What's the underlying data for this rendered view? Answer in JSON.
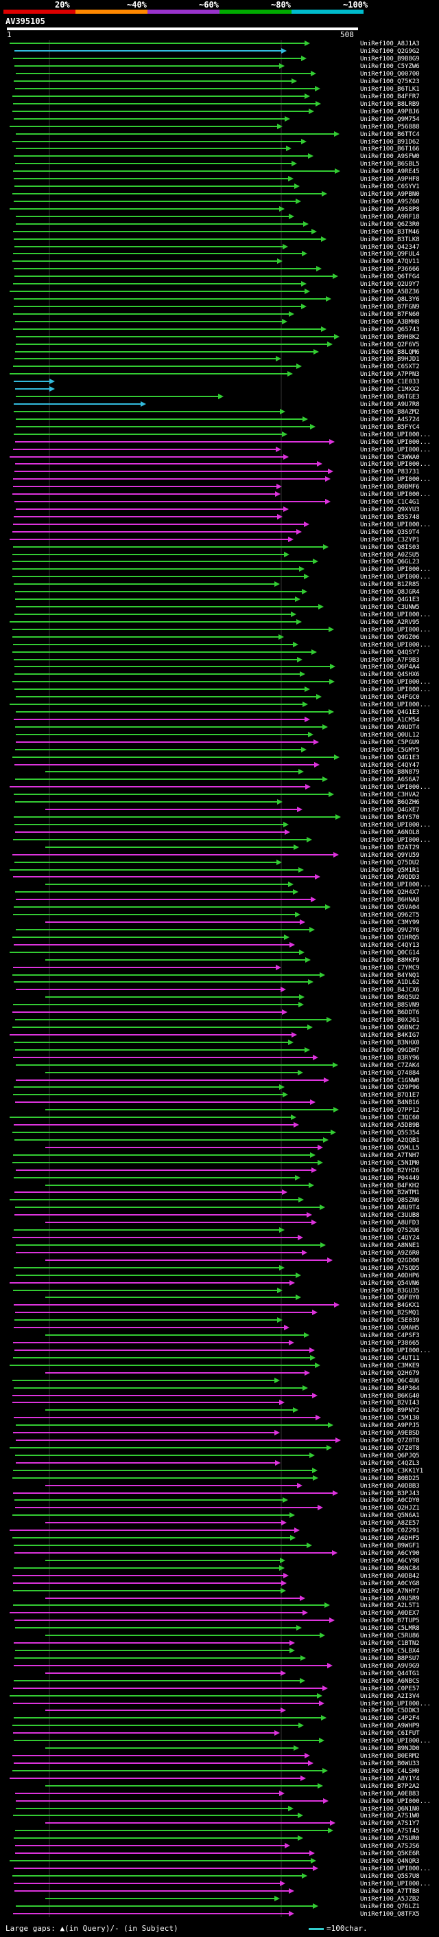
{
  "header": {
    "scale_labels": [
      "20%",
      "~40%",
      "~60%",
      "~80%",
      "~100%"
    ],
    "accession": "AV395105",
    "query_start": "1",
    "query_end": "508"
  },
  "colors": {
    "scale": [
      "#dd0000",
      "#ff8800",
      "#9933cc",
      "#00aa00",
      "#00bbcc"
    ],
    "green": "#33cc33",
    "magenta": "#dd33dd",
    "cyan": "#33bbdd"
  },
  "hits": [
    "UniRef100_A8J1A3",
    "UniRef100_Q2G9G2",
    "UniRef100_B9B8G9",
    "UniRef100_C5YZW6",
    "UniRef100_Q00700",
    "UniRef100_Q75K23",
    "UniRef100_B6TLK1",
    "UniRef100_B4FFR7",
    "UniRef100_B8LRB9",
    "UniRef100_A9PBJ6",
    "UniRef100_Q9M754",
    "UniRef100_P56888",
    "UniRef100_B6TTC4",
    "UniRef100_B91D62",
    "UniRef100_B6T166",
    "UniRef100_A9SFW0",
    "UniRef100_B6SBL5",
    "UniRef100_A9RE45",
    "UniRef100_A9PHF8",
    "UniRef100_C6SYV1",
    "UniRef100_A9PBN0",
    "UniRef100_A9SZ60",
    "UniRef100_A9S8P8",
    "UniRef100_A9RF18",
    "UniRef100_Q6Z3R0",
    "UniRef100_B3TM46",
    "UniRef100_B3TLK8",
    "UniRef100_Q42347",
    "UniRef100_Q9FUL4",
    "UniRef100_A7QV11",
    "UniRef100_P36666",
    "UniRef100_Q6TFG4",
    "UniRef100_Q2U9Y7",
    "UniRef100_A5BZ36",
    "UniRef100_Q8L3Y6",
    "UniRef100_B7FGN9",
    "UniRef100_B7FN60",
    "UniRef100_A3BMH8",
    "UniRef100_Q65743",
    "UniRef100_B9H8K2",
    "UniRef100_Q2F6V5",
    "UniRef100_B8LQM6",
    "UniRef100_B9HJD1",
    "UniRef100_C6SXT2",
    "UniRef100_A7PPN3",
    "UniRef100_C1E033",
    "UniRef100_C1MXX2",
    "UniRef100_B6TGE3",
    "UniRef100_A9U7R8",
    "UniRef100_B8AZM2",
    "UniRef100_A4S724",
    "UniRef100_B5FYC4",
    "UniRef100_UPI000...",
    "UniRef100_UPI000...",
    "UniRef100_UPI000...",
    "UniRef100_C3WWA0",
    "UniRef100_UPI000...",
    "UniRef100_P83731",
    "UniRef100_UPI000...",
    "UniRef100_B0BMF6",
    "UniRef100_UPI000...",
    "UniRef100_C1C4G1",
    "UniRef100_Q9XYU3",
    "UniRef100_B5S748",
    "UniRef100_UPI000...",
    "UniRef100_Q3S9T4",
    "UniRef100_C3ZYP1",
    "UniRef100_Q8IS03",
    "UniRef100_A0ZSU5",
    "UniRef100_Q6GL23",
    "UniRef100_UPI000...",
    "UniRef100_UPI000...",
    "UniRef100_B1ZR85",
    "UniRef100_Q8JGR4",
    "UniRef100_Q4G1E3",
    "UniRef100_C3UNW5",
    "UniRef100_UPI000...",
    "UniRef100_A2RV95",
    "UniRef100_UPI000...",
    "UniRef100_Q9GZ06",
    "UniRef100_UPI000...",
    "UniRef100_Q4QSY7",
    "UniRef100_A7F9B3",
    "UniRef100_Q6P4A4",
    "UniRef100_Q4SHX6",
    "UniRef100_UPI000...",
    "UniRef100_UPI000...",
    "UniRef100_Q4FGC0",
    "UniRef100_UPI000...",
    "UniRef100_Q4G1E3",
    "UniRef100_A1CM54",
    "UniRef100_A9UDT4",
    "UniRef100_Q0UL12",
    "UniRef100_C5PGU9",
    "UniRef100_C5GMY5",
    "UniRef100_Q4G1E3",
    "UniRef100_C4QY47",
    "UniRef100_B8N879",
    "UniRef100_A6S6A7",
    "UniRef100_UPI000...",
    "UniRef100_C3HVA2",
    "UniRef100_B6QZH6",
    "UniRef100_Q4GXE7",
    "UniRef100_B4YS70",
    "UniRef100_UPI000...",
    "UniRef100_A6NOL8",
    "UniRef100_UPI000...",
    "UniRef100_B2AT29",
    "UniRef100_Q9YU59",
    "UniRef100_Q75DU2",
    "UniRef100_Q5M1R1",
    "UniRef100_A9QDD3",
    "UniRef100_UPI000...",
    "UniRef100_Q2H4X7",
    "UniRef100_B6HNA8",
    "UniRef100_Q5VA04",
    "UniRef100_Q962T5",
    "UniRef100_C3MY99",
    "UniRef100_Q9VJY6",
    "UniRef100_Q1HRQ5",
    "UniRef100_C4QY13",
    "UniRef100_Q0CG14",
    "UniRef100_B8MKF9",
    "UniRef100_C7YMC9",
    "UniRef100_B4YNQ1",
    "UniRef100_A1DL62",
    "UniRef100_B4JCX6",
    "UniRef100_B6Q5U2",
    "UniRef100_B8SVN9",
    "UniRef100_B6DDT6",
    "UniRef100_B0XJ61",
    "UniRef100_Q6BNC2",
    "UniRef100_B4KIG7",
    "UniRef100_B3NHX0",
    "UniRef100_Q9GDH7",
    "UniRef100_B3RY96",
    "UniRef100_C7ZAK4",
    "UniRef100_Q74884",
    "UniRef100_C1GNW0",
    "UniRef100_Q29P96",
    "UniRef100_B7Q1E7",
    "UniRef100_B4NB16",
    "UniRef100_Q7PP12",
    "UniRef100_C3QC60",
    "UniRef100_A5DB9B",
    "UniRef100_Q5S354",
    "UniRef100_A2QQB1",
    "UniRef100_Q5MLL5",
    "UniRef100_A7TNH7",
    "UniRef100_C5NIM0",
    "UniRef100_B2YH26",
    "UniRef100_P04449",
    "UniRef100_B4FKH2",
    "UniRef100_B2WTM1",
    "UniRef100_Q8SZN6",
    "UniRef100_A8U9T4",
    "UniRef100_C3UUB8",
    "UniRef100_A8UFD3",
    "UniRef100_Q7S2U6",
    "UniRef100_C4QY24",
    "UniRef100_A8NNE1",
    "UniRef100_A9Z6R0",
    "UniRef100_Q2GD00",
    "UniRef100_A7SQD5",
    "UniRef100_A0DHP6",
    "UniRef100_Q54VN6",
    "UniRef100_B3GU35",
    "UniRef100_Q6F0Y0",
    "UniRef100_B4GKX1",
    "UniRef100_B2SMQ1",
    "UniRef100_C5E039",
    "UniRef100_C6MAH5",
    "UniRef100_C4PSF3",
    "UniRef100_P38665",
    "UniRef100_UPI000...",
    "UniRef100_C4UT11",
    "UniRef100_C3MKE9",
    "UniRef100_Q2H679",
    "UniRef100_Q6C4U6",
    "UniRef100_B4P364",
    "UniRef100_B6KG40",
    "UniRef100_B2VI43",
    "UniRef100_B9PNY2",
    "UniRef100_C5M130",
    "UniRef100_A9PPJ5",
    "UniRef100_A9EBSD",
    "UniRef100_Q7Z0T8",
    "UniRef100_Q7Z0T8",
    "UniRef100_Q6PJQ5",
    "UniRef100_C4QZL3",
    "UniRef100_C3KK1Y1",
    "UniRef100_B0BD25",
    "UniRef100_A0DBB3",
    "UniRef100_B3PJ43",
    "UniRef100_A0CDY0",
    "UniRef100_Q2HJZ1",
    "UniRef100_Q5N6A1",
    "UniRef100_A8ZE57",
    "UniRef100_C0Z291",
    "UniRef100_A6DHF5",
    "UniRef100_B9WGF1",
    "UniRef100_A6CY90",
    "UniRef100_A6CY98",
    "UniRef100_B6NC84",
    "UniRef100_A0DB42",
    "UniRef100_A0CYG8",
    "UniRef100_A7NHY7",
    "UniRef100_A9U5R9",
    "UniRef100_A2L5T1",
    "UniRef100_A0DEX7",
    "UniRef100_B7TUP5",
    "UniRef100_C5LMR8",
    "UniRef100_C5RU86",
    "UniRef100_C1BTN2",
    "UniRef100_C5LBX4",
    "UniRef100_B8PSU7",
    "UniRef100_A9V9G9",
    "UniRef100_Q44TG1",
    "UniRef100_A6NBCS",
    "UniRef100_C0PE57",
    "UniRef100_A2I3V4",
    "UniRef100_UPI000...",
    "UniRef100_C5DDK3",
    "UniRef100_C4P2F4",
    "UniRef100_A9WHP9",
    "UniRef100_C6IFUT",
    "UniRef100_UPI000...",
    "UniRef100_B9NJD0",
    "UniRef100_B0ERM2",
    "UniRef100_B0WU33",
    "UniRef100_C4LSH0",
    "UniRef100_A8Y1Y4",
    "UniRef100_B7P2A2",
    "UniRef100_A0EB83",
    "UniRef100_UPI000...",
    "UniRef100_Q6N1N0",
    "UniRef100_A7S1W0",
    "UniRef100_A7S1Y7",
    "UniRef100_A7ST45",
    "UniRef100_A7SUR0",
    "UniRef100_A7SJS6",
    "UniRef100_Q5KE6R",
    "UniRef100_Q4NQR3",
    "UniRef100_UPI000...",
    "UniRef100_Q5S7U8",
    "UniRef100_UPI000...",
    "UniRef100_A7TTB8",
    "UniRef100_A5JZB2",
    "UniRef100_Q76LZ1",
    "UniRef100_Q8TFX5"
  ],
  "legend": {
    "gaps_label": "Large gaps: ▲(in Query)/- (in Subject)",
    "scale_label": "=100char."
  }
}
